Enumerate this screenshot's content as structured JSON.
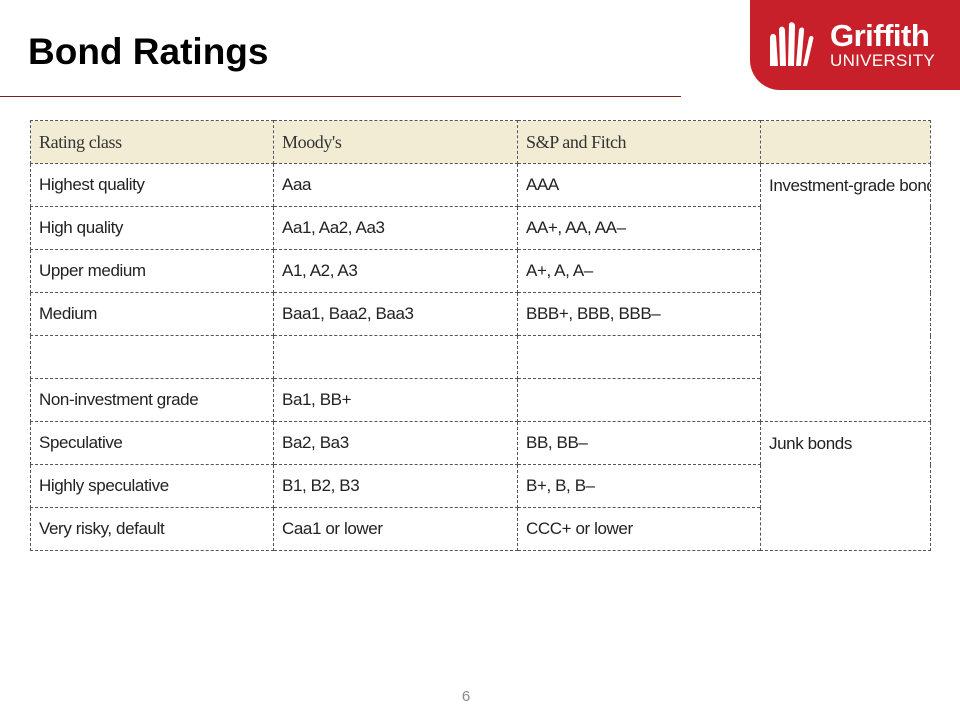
{
  "slide": {
    "title": "Bond Ratings",
    "page_number": "6"
  },
  "logo": {
    "name": "Griffith",
    "subtitle": "UNIVERSITY",
    "color": "#c8202a"
  },
  "table": {
    "headers": [
      "Rating class",
      "Moody's",
      "S&P and Fitch",
      ""
    ],
    "rows": [
      [
        "Highest quality",
        "Aaa",
        "AAA"
      ],
      [
        "High quality",
        "Aa1, Aa2, Aa3",
        "AA+, AA, AA–"
      ],
      [
        "Upper medium",
        "A1, A2, A3",
        "A+, A, A–"
      ],
      [
        "Medium",
        "Baa1, Baa2, Baa3",
        "BBB+, BBB, BBB–"
      ],
      [
        "",
        "",
        ""
      ],
      [
        "Non-investment grade",
        "Ba1, BB+",
        ""
      ],
      [
        "Speculative",
        "Ba2, Ba3",
        "BB, BB–"
      ],
      [
        "Highly speculative",
        "B1, B2, B3",
        "B+, B, B–"
      ],
      [
        "Very risky, default",
        "Caa1 or lower",
        "CCC+ or lower"
      ]
    ],
    "groups": [
      "Investment-grade bonds",
      "Junk bonds"
    ],
    "header_color": "#f3ecd4"
  }
}
